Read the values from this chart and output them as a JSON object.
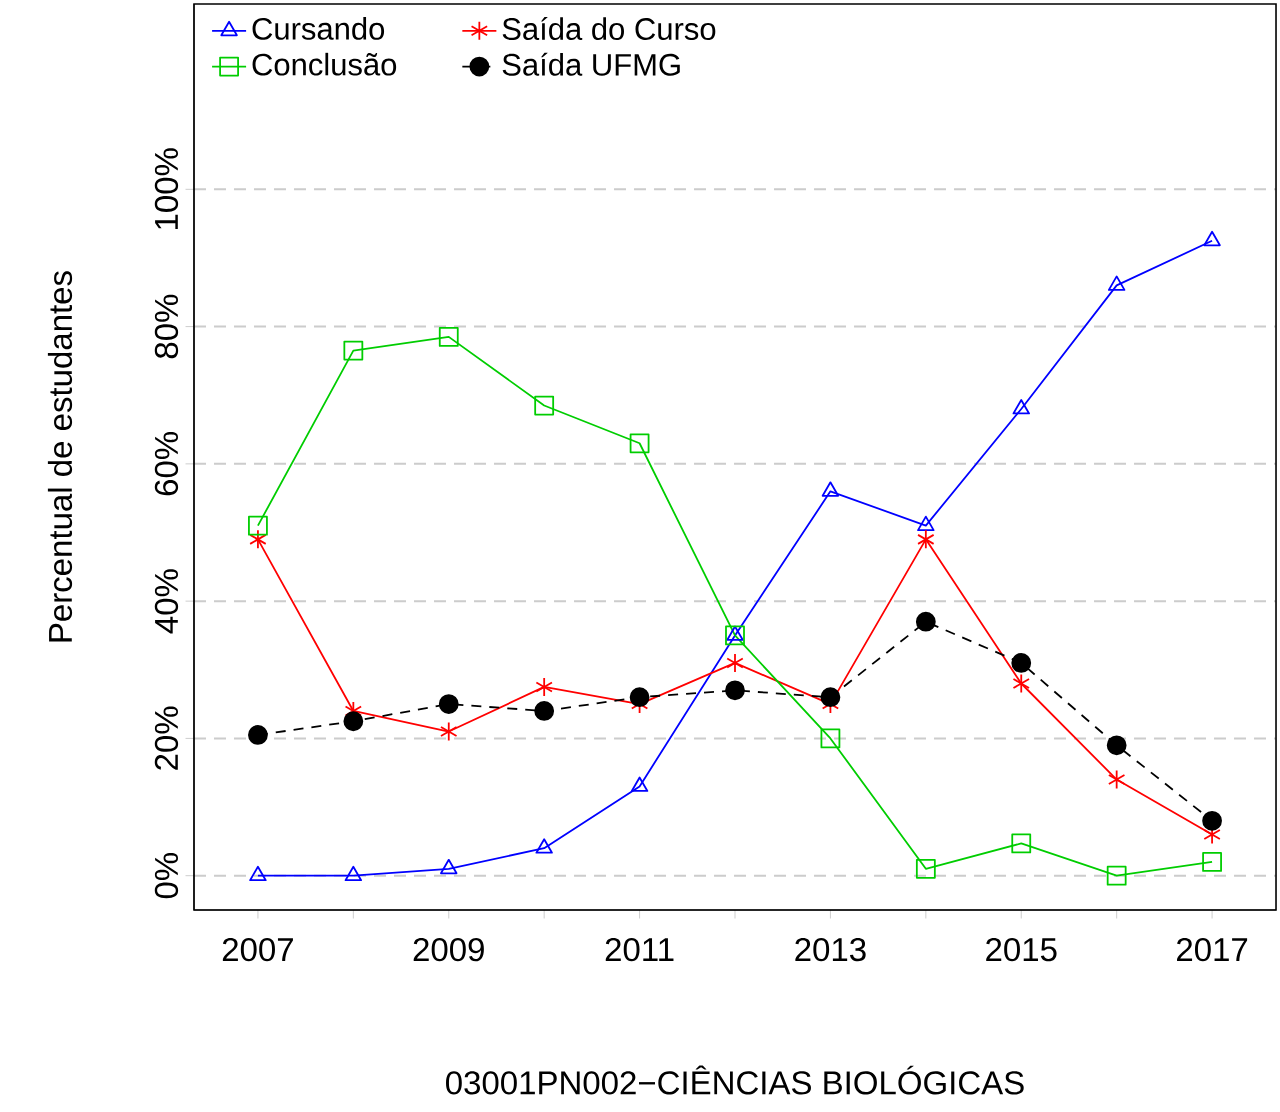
{
  "chart_data": {
    "type": "line",
    "xlabel": "03001PN002−CIÊNCIAS BIOLÓGICAS",
    "ylabel": "Percentual de estudantes",
    "x": [
      2007,
      2008,
      2009,
      2010,
      2011,
      2012,
      2013,
      2014,
      2015,
      2016,
      2017
    ],
    "series": [
      {
        "name": "Cursando",
        "color": "#0000ff",
        "marker": "triangle",
        "line_style": "solid",
        "values": [
          0,
          0,
          1,
          4,
          13,
          35,
          56,
          51,
          68,
          86,
          92.5
        ]
      },
      {
        "name": "Saída do Curso",
        "color": "#ff0000",
        "marker": "cross",
        "line_style": "solid",
        "values": [
          49,
          24,
          21,
          27.5,
          25,
          31,
          25,
          49,
          28,
          14,
          6
        ]
      },
      {
        "name": "Conclusão",
        "color": "#00cd00",
        "marker": "square",
        "line_style": "solid",
        "values": [
          51,
          76.5,
          78.5,
          68.5,
          63,
          35,
          20,
          1,
          4.7,
          0,
          2
        ]
      },
      {
        "name": "Saída UFMG",
        "color": "#000000",
        "marker": "circle",
        "line_style": "dashed",
        "values": [
          20.5,
          22.5,
          25,
          24,
          26,
          27,
          26,
          37,
          31,
          19,
          8
        ]
      }
    ],
    "xlim": [
      2006.33,
      2017.67
    ],
    "ylim": [
      -5,
      127
    ],
    "xticks": [
      2007,
      {
        "value": 2008,
        "label": null
      },
      2009,
      {
        "value": 2010,
        "label": null
      },
      2011,
      {
        "value": 2012,
        "label": null
      },
      2013,
      {
        "value": 2014,
        "label": null
      },
      2015,
      {
        "value": 2016,
        "label": null
      },
      2017
    ],
    "yticks": [
      {
        "value": 0,
        "label": "0%"
      },
      {
        "value": 20,
        "label": "20%"
      },
      {
        "value": 40,
        "label": "40%"
      },
      {
        "value": 60,
        "label": "60%"
      },
      {
        "value": 80,
        "label": "80%"
      },
      {
        "value": 100,
        "label": "100%"
      }
    ],
    "grid": "y",
    "legend": "top"
  }
}
